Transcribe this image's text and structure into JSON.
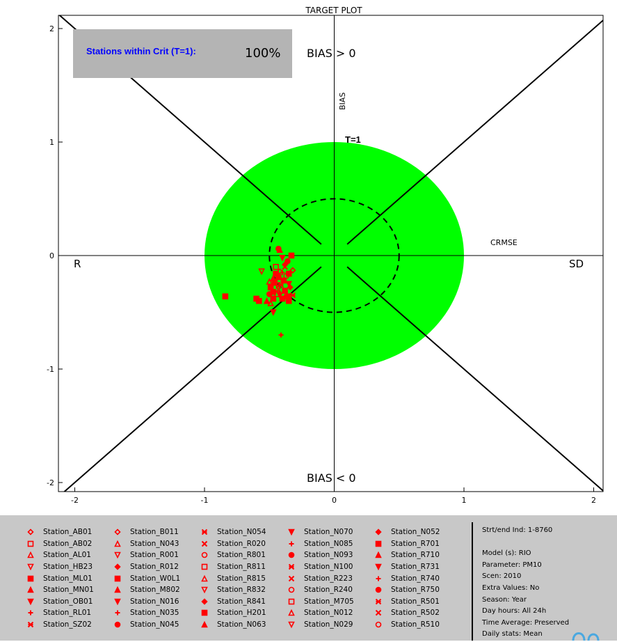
{
  "chart_data": {
    "type": "scatter",
    "title": "TARGET PLOT",
    "xlabel": "CRMSE",
    "ylabel": "BIAS",
    "xlim": [
      -2.1,
      2.1
    ],
    "ylim": [
      -2.1,
      2.1
    ],
    "xticks": [
      "-2",
      "-1",
      "0",
      "1",
      "2"
    ],
    "yticks": [
      "2",
      "1",
      "0",
      "-1",
      "-2"
    ],
    "xtick_values": [
      -2,
      -1,
      0,
      1,
      2
    ],
    "ytick_values": [
      2,
      1,
      0,
      -1,
      -2
    ],
    "label_left": "R",
    "label_right": "SD",
    "label_top": "BIAS > 0",
    "label_bottom": "BIAS < 0",
    "circle_label": "T=1",
    "target_radius": 1,
    "inner_radius": 0.5,
    "stats_label": "Stations within Crit (T=1):",
    "stats_value": "100%",
    "colors": {
      "target_fill": "#00ff00",
      "points": "#ff0000",
      "stats_box": "#b4b4b4",
      "stats_label": "#0000ff",
      "legend_bg": "#c8c8c8"
    },
    "points": [
      {
        "x": -0.43,
        "y": 0.06,
        "m": "circle"
      },
      {
        "x": -0.42,
        "y": 0.05,
        "m": "tri"
      },
      {
        "x": -0.33,
        "y": 0.0,
        "m": "square"
      },
      {
        "x": -0.4,
        "y": -0.02,
        "m": "tridown"
      },
      {
        "x": -0.36,
        "y": -0.05,
        "m": "circle"
      },
      {
        "x": -0.38,
        "y": -0.08,
        "m": "diamond"
      },
      {
        "x": -0.56,
        "y": -0.14,
        "m": "tridownopen"
      },
      {
        "x": -0.38,
        "y": -0.1,
        "m": "x"
      },
      {
        "x": -0.42,
        "y": -0.14,
        "m": "diamondopen"
      },
      {
        "x": -0.45,
        "y": -0.16,
        "m": "square"
      },
      {
        "x": -0.4,
        "y": -0.15,
        "m": "plus"
      },
      {
        "x": -0.32,
        "y": -0.13,
        "m": "diamondopen"
      },
      {
        "x": -0.35,
        "y": -0.16,
        "m": "square"
      },
      {
        "x": -0.47,
        "y": -0.2,
        "m": "tri"
      },
      {
        "x": -0.43,
        "y": -0.19,
        "m": "square"
      },
      {
        "x": -0.37,
        "y": -0.18,
        "m": "circleopen"
      },
      {
        "x": -0.5,
        "y": -0.23,
        "m": "triopen"
      },
      {
        "x": -0.46,
        "y": -0.24,
        "m": "square"
      },
      {
        "x": -0.41,
        "y": -0.26,
        "m": "asterisk"
      },
      {
        "x": -0.35,
        "y": -0.25,
        "m": "tridown"
      },
      {
        "x": -0.49,
        "y": -0.28,
        "m": "square"
      },
      {
        "x": -0.43,
        "y": -0.3,
        "m": "x"
      },
      {
        "x": -0.34,
        "y": -0.28,
        "m": "diamond"
      },
      {
        "x": -0.38,
        "y": -0.31,
        "m": "square"
      },
      {
        "x": -0.47,
        "y": -0.32,
        "m": "square"
      },
      {
        "x": -0.5,
        "y": -0.34,
        "m": "circle"
      },
      {
        "x": -0.42,
        "y": -0.35,
        "m": "tridown"
      },
      {
        "x": -0.36,
        "y": -0.36,
        "m": "square"
      },
      {
        "x": -0.32,
        "y": -0.35,
        "m": "asterisk"
      },
      {
        "x": -0.47,
        "y": -0.38,
        "m": "square"
      },
      {
        "x": -0.4,
        "y": -0.38,
        "m": "square"
      },
      {
        "x": -0.35,
        "y": -0.4,
        "m": "square"
      },
      {
        "x": -0.52,
        "y": -0.4,
        "m": "tri"
      },
      {
        "x": -0.58,
        "y": -0.4,
        "m": "square"
      },
      {
        "x": -0.49,
        "y": -0.42,
        "m": "triopen"
      },
      {
        "x": -0.84,
        "y": -0.36,
        "m": "square"
      },
      {
        "x": -0.6,
        "y": -0.38,
        "m": "square"
      },
      {
        "x": -0.47,
        "y": -0.5,
        "m": "tridown"
      },
      {
        "x": -0.41,
        "y": -0.7,
        "m": "plus"
      },
      {
        "x": -0.44,
        "y": -0.26,
        "m": "tridownopen"
      },
      {
        "x": -0.39,
        "y": -0.22,
        "m": "square"
      },
      {
        "x": -0.45,
        "y": -0.1,
        "m": "squareopen"
      },
      {
        "x": -0.37,
        "y": -0.34,
        "m": "tri"
      },
      {
        "x": -0.44,
        "y": -0.34,
        "m": "squareopen"
      }
    ]
  },
  "legend": {
    "columns": [
      [
        {
          "m": "diamondopen",
          "label": "Station_AB01"
        },
        {
          "m": "squareopen",
          "label": "Station_AB02"
        },
        {
          "m": "triopen",
          "label": "Station_AL01"
        },
        {
          "m": "tridownopen",
          "label": "Station_HB23"
        },
        {
          "m": "square",
          "label": "Station_ML01"
        },
        {
          "m": "tri",
          "label": "Station_MN01"
        },
        {
          "m": "tridown",
          "label": "Station_OB01"
        },
        {
          "m": "plus",
          "label": "Station_RL01"
        },
        {
          "m": "asterisk",
          "label": "Station_SZ02"
        }
      ],
      [
        {
          "m": "diamondopen",
          "label": "Station_B011"
        },
        {
          "m": "triopen",
          "label": "Station_N043"
        },
        {
          "m": "tridownopen",
          "label": "Station_R001"
        },
        {
          "m": "diamond",
          "label": "Station_R012"
        },
        {
          "m": "square",
          "label": "Station_W0L1"
        },
        {
          "m": "tri",
          "label": "Station_M802"
        },
        {
          "m": "tridown",
          "label": "Station_N016"
        },
        {
          "m": "plus",
          "label": "Station_N035"
        },
        {
          "m": "circle",
          "label": "Station_N045"
        }
      ],
      [
        {
          "m": "asterisk",
          "label": "Station_N054"
        },
        {
          "m": "x",
          "label": "Station_R020"
        },
        {
          "m": "circleopen",
          "label": "Station_R801"
        },
        {
          "m": "squareopen",
          "label": "Station_R811"
        },
        {
          "m": "triopen",
          "label": "Station_R815"
        },
        {
          "m": "tridownopen",
          "label": "Station_R832"
        },
        {
          "m": "diamond",
          "label": "Station_R841"
        },
        {
          "m": "square",
          "label": "Station_H201"
        },
        {
          "m": "tri",
          "label": "Station_N063"
        }
      ],
      [
        {
          "m": "tridown",
          "label": "Station_N070"
        },
        {
          "m": "plus",
          "label": "Station_N085"
        },
        {
          "m": "circle",
          "label": "Station_N093"
        },
        {
          "m": "asterisk",
          "label": "Station_N100"
        },
        {
          "m": "x",
          "label": "Station_R223"
        },
        {
          "m": "circleopen",
          "label": "Station_R240"
        },
        {
          "m": "squareopen",
          "label": "Station_M705"
        },
        {
          "m": "triopen",
          "label": "Station_N012"
        },
        {
          "m": "tridownopen",
          "label": "Station_N029"
        }
      ],
      [
        {
          "m": "diamond",
          "label": "Station_N052"
        },
        {
          "m": "square",
          "label": "Station_R701"
        },
        {
          "m": "tri",
          "label": "Station_R710"
        },
        {
          "m": "tridown",
          "label": "Station_R731"
        },
        {
          "m": "plus",
          "label": "Station_R740"
        },
        {
          "m": "circle",
          "label": "Station_R750"
        },
        {
          "m": "asterisk",
          "label": "Station_R501"
        },
        {
          "m": "x",
          "label": "Station_R502"
        },
        {
          "m": "circleopen",
          "label": "Station_R510"
        }
      ]
    ]
  },
  "info": {
    "line1": "Strt/end Ind: 1-8760",
    "line2": "Model (s): RIO",
    "line3": "Parameter: PM10",
    "line4": "Scen: 2010",
    "line5": "Extra Values: No",
    "line6": "Season: Year",
    "line7": "Day hours: All 24h",
    "line8": "Time Average: Preserved",
    "line9": "Daily stats: Mean"
  }
}
